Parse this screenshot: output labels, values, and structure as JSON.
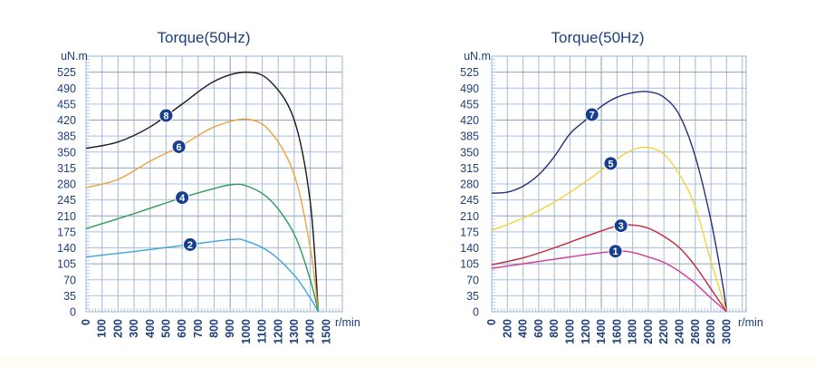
{
  "chart_data": [
    {
      "type": "line",
      "title": "Torque(50Hz)",
      "ylabel": "uN.m",
      "xlabel": "r/min",
      "xlim": [
        0,
        1600
      ],
      "ylim": [
        0,
        560
      ],
      "grid": true,
      "yticks": [
        0,
        35,
        70,
        105,
        140,
        175,
        210,
        245,
        280,
        315,
        350,
        385,
        420,
        455,
        490,
        525
      ],
      "xticks": [
        0,
        100,
        200,
        300,
        400,
        500,
        600,
        700,
        800,
        900,
        1000,
        1100,
        1200,
        1300,
        1400,
        1500
      ],
      "series": [
        {
          "name": "8",
          "color": "#1a1a1a",
          "marker_at": 500,
          "x": [
            0,
            200,
            400,
            600,
            800,
            1000,
            1150,
            1300,
            1400,
            1450
          ],
          "y": [
            358,
            372,
            405,
            455,
            505,
            525,
            505,
            420,
            240,
            0
          ]
        },
        {
          "name": "6",
          "color": "#e8a43a",
          "marker_at": 580,
          "x": [
            0,
            200,
            400,
            600,
            800,
            1000,
            1150,
            1300,
            1400,
            1450
          ],
          "y": [
            272,
            290,
            330,
            365,
            405,
            422,
            395,
            300,
            140,
            0
          ]
        },
        {
          "name": "4",
          "color": "#2e9a5c",
          "marker_at": 600,
          "x": [
            0,
            300,
            600,
            800,
            900,
            1000,
            1150,
            1300,
            1400,
            1450
          ],
          "y": [
            182,
            215,
            250,
            270,
            278,
            276,
            245,
            170,
            70,
            0
          ]
        },
        {
          "name": "2",
          "color": "#3aa6d6",
          "marker_at": 650,
          "x": [
            0,
            300,
            600,
            900,
            1000,
            1150,
            1300,
            1400,
            1450
          ],
          "y": [
            120,
            132,
            145,
            158,
            155,
            130,
            80,
            30,
            0
          ]
        }
      ]
    },
    {
      "type": "line",
      "title": "Torque(50Hz)",
      "ylabel": "uN.m",
      "xlabel": "r/min",
      "xlim": [
        0,
        3250
      ],
      "ylim": [
        0,
        560
      ],
      "grid": true,
      "yticks": [
        0,
        35,
        70,
        105,
        140,
        175,
        210,
        245,
        280,
        315,
        350,
        385,
        420,
        455,
        490,
        525
      ],
      "xticks": [
        0,
        200,
        400,
        600,
        800,
        1000,
        1200,
        1400,
        1600,
        1800,
        2000,
        2200,
        2400,
        2600,
        2800,
        3000
      ],
      "series": [
        {
          "name": "7",
          "color": "#2b2d7a",
          "marker_at": 1280,
          "x": [
            0,
            200,
            400,
            600,
            800,
            1000,
            1200,
            1400,
            1600,
            1800,
            2000,
            2200,
            2400,
            2600,
            2800,
            2950,
            3000
          ],
          "y": [
            260,
            262,
            275,
            300,
            340,
            390,
            420,
            450,
            470,
            480,
            482,
            470,
            430,
            340,
            200,
            60,
            0
          ]
        },
        {
          "name": "5",
          "color": "#f2d33a",
          "marker_at": 1520,
          "x": [
            0,
            400,
            800,
            1200,
            1400,
            1600,
            1800,
            2000,
            2200,
            2400,
            2600,
            2800,
            3000
          ],
          "y": [
            178,
            205,
            240,
            285,
            310,
            335,
            355,
            360,
            345,
            300,
            230,
            110,
            0
          ]
        },
        {
          "name": "3",
          "color": "#c0283a",
          "marker_at": 1650,
          "x": [
            0,
            400,
            800,
            1200,
            1600,
            1800,
            2000,
            2200,
            2400,
            2600,
            2800,
            3000
          ],
          "y": [
            103,
            118,
            140,
            165,
            188,
            190,
            183,
            165,
            140,
            100,
            50,
            0
          ]
        },
        {
          "name": "1",
          "color": "#d1389a",
          "marker_at": 1580,
          "x": [
            0,
            400,
            800,
            1200,
            1600,
            1800,
            2000,
            2200,
            2400,
            2600,
            2800,
            3000
          ],
          "y": [
            95,
            105,
            115,
            125,
            133,
            130,
            120,
            108,
            88,
            62,
            30,
            0
          ]
        }
      ]
    }
  ],
  "colors": {
    "text": "#1d3f7d",
    "grid": "#a9c0e0",
    "grid_major": "#8fa2bf",
    "marker_fill": "#173f8f"
  }
}
